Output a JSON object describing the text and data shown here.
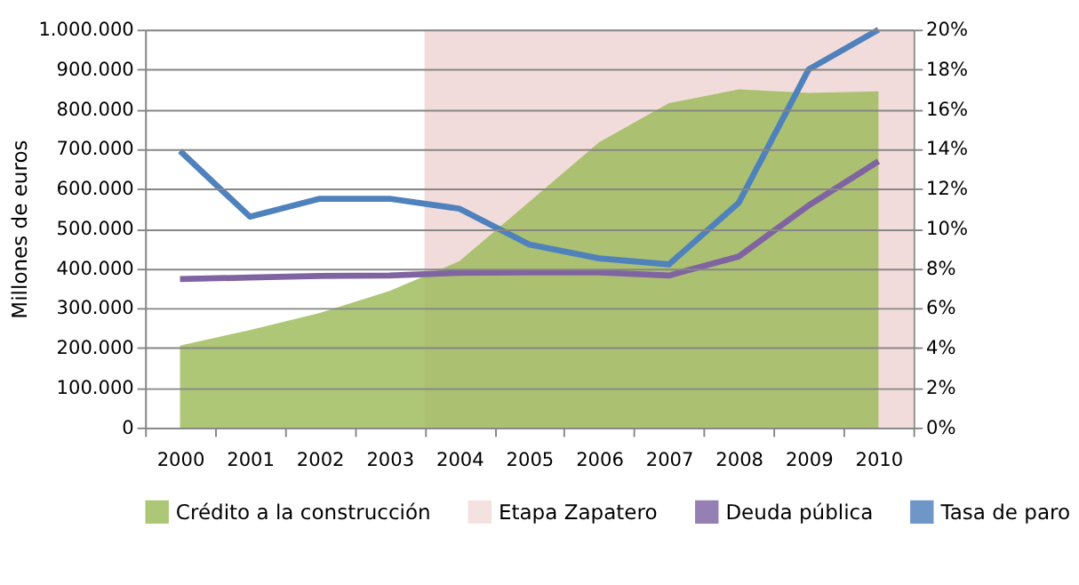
{
  "chart_data": {
    "type": "line",
    "categories": [
      "2000",
      "2001",
      "2002",
      "2003",
      "2004",
      "2005",
      "2006",
      "2007",
      "2008",
      "2009",
      "2010"
    ],
    "ylabel": "Millones de euros",
    "ylim": [
      0,
      1000000
    ],
    "yticks": [
      0,
      {
        "value": 100000,
        "label": "100.000"
      },
      {
        "value": 200000,
        "label": "200.000"
      },
      {
        "value": 300000,
        "label": "300.000"
      },
      {
        "value": 400000,
        "label": "400.000"
      },
      {
        "value": 500000,
        "label": "500.000"
      },
      {
        "value": 600000,
        "label": "600.000"
      },
      {
        "value": 700000,
        "label": "700.000"
      },
      {
        "value": 800000,
        "label": "800.000"
      },
      {
        "value": 900000,
        "label": "900.000"
      },
      {
        "value": 1000000,
        "label": "1.000.000"
      }
    ],
    "y2lim": [
      0,
      20
    ],
    "y2ticks": [
      {
        "value": 0,
        "label": "0%"
      },
      {
        "value": 2,
        "label": "2%"
      },
      {
        "value": 4,
        "label": "4%"
      },
      {
        "value": 6,
        "label": "6%"
      },
      {
        "value": 8,
        "label": "8%"
      },
      {
        "value": 10,
        "label": "10%"
      },
      {
        "value": 12,
        "label": "12%"
      },
      {
        "value": 14,
        "label": "14%"
      },
      {
        "value": 16,
        "label": "16%"
      },
      {
        "value": 18,
        "label": "18%"
      },
      {
        "value": 20,
        "label": "20%"
      }
    ],
    "series": [
      {
        "name": "Crédito a la construcción",
        "type": "area",
        "color": "#9bbb59",
        "values": [
          206000,
          245000,
          288000,
          343000,
          418000,
          567000,
          717000,
          815000,
          850000,
          841000,
          845000
        ]
      },
      {
        "name": "Deuda pública",
        "color": "#8064a2",
        "values": [
          373000,
          377000,
          381000,
          382000,
          389000,
          390000,
          390000,
          382000,
          430000,
          558000,
          669000
        ]
      },
      {
        "name": "Tasa de paro",
        "axis": "y2",
        "color": "#4f81bd",
        "values": [
          13.9,
          10.6,
          11.5,
          11.5,
          11.0,
          9.2,
          8.5,
          8.2,
          11.3,
          18.0,
          20.0
        ]
      }
    ],
    "bands": [
      {
        "axis": "x",
        "from": "2004",
        "to": "2010",
        "label": "Etapa Zapatero",
        "color": "#f2dcdb"
      }
    ],
    "grid": "y",
    "legend": "bottom",
    "line_style": "solid",
    "marker": "none"
  }
}
